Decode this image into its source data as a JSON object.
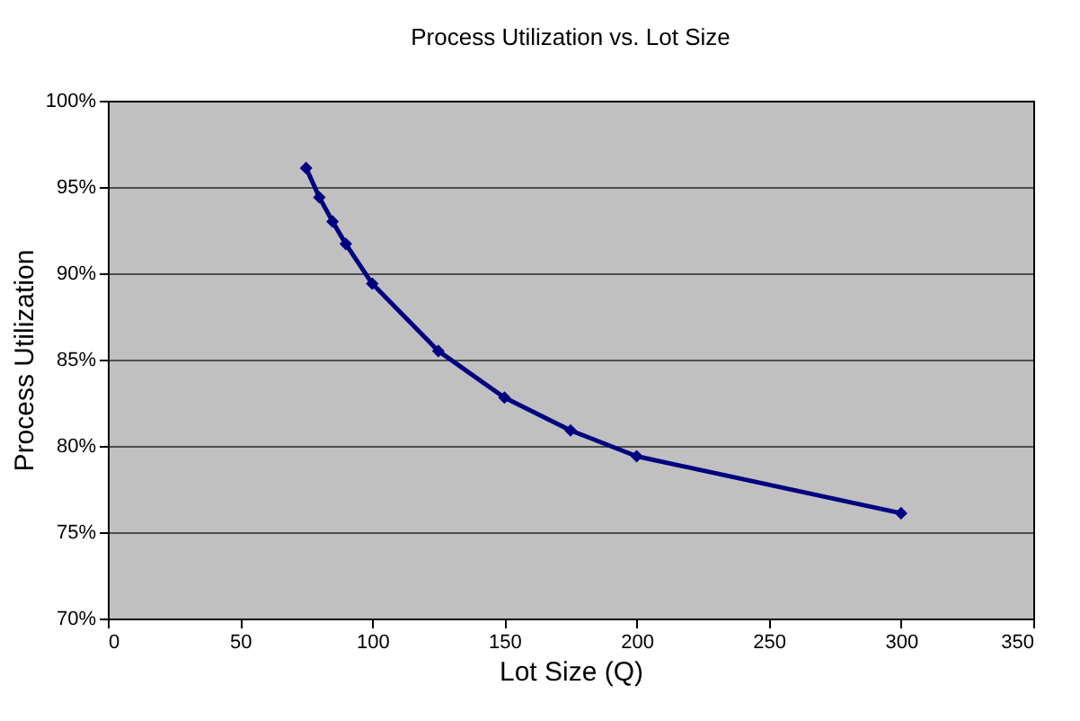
{
  "chart_data": {
    "type": "line",
    "title": "Process Utilization vs. Lot Size",
    "xlabel": "Lot Size (Q)",
    "ylabel": "Process Utilization",
    "x": [
      75,
      80,
      85,
      90,
      100,
      125,
      150,
      175,
      200,
      300
    ],
    "series": [
      {
        "color": "#000080",
        "values": [
          96.1,
          94.4,
          93.0,
          91.7,
          89.4,
          85.5,
          82.8,
          80.9,
          79.4,
          76.1
        ]
      }
    ],
    "xlim": [
      0,
      350
    ],
    "xticks": [
      0,
      50,
      100,
      150,
      200,
      250,
      300,
      350
    ],
    "ylim": [
      70,
      100
    ],
    "yticks": [
      {
        "value": 70,
        "label": "70%"
      },
      {
        "value": 75,
        "label": "75%"
      },
      {
        "value": 80,
        "label": "80%"
      },
      {
        "value": 85,
        "label": "85%"
      },
      {
        "value": 90,
        "label": "90%"
      },
      {
        "value": 95,
        "label": "95%"
      },
      {
        "value": 100,
        "label": "100%"
      }
    ],
    "grid": "y",
    "marker": "diamond",
    "line_style": "solid"
  }
}
